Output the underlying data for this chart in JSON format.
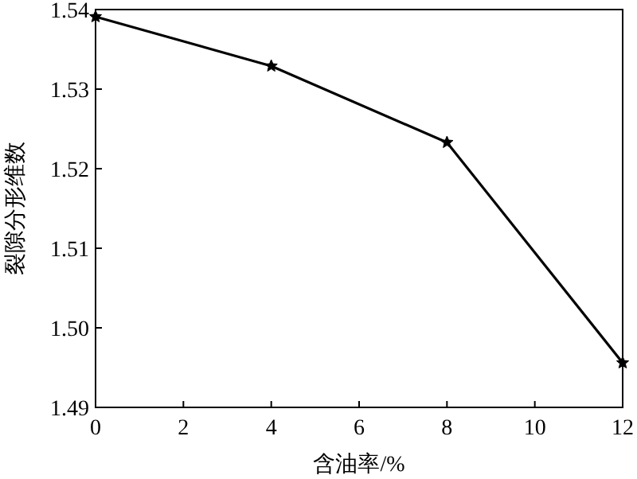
{
  "chart_data": {
    "type": "line",
    "xlabel": "含油率/%",
    "ylabel": "裂隙分形维数",
    "x": [
      0,
      4,
      8,
      12
    ],
    "series": [
      {
        "color": "#000000",
        "values": [
          1.5391,
          1.5329,
          1.5233,
          1.4956
        ]
      }
    ],
    "xlim": [
      0,
      12
    ],
    "xticks": [
      0,
      2,
      4,
      6,
      8,
      10,
      12
    ],
    "ylim": [
      1.49,
      1.54
    ],
    "yticks": [
      {
        "value": 1.49,
        "label": "1.49"
      },
      {
        "value": 1.5,
        "label": "1.50"
      },
      {
        "value": 1.51,
        "label": "1.51"
      },
      {
        "value": 1.52,
        "label": "1.52"
      },
      {
        "value": 1.53,
        "label": "1.53"
      },
      {
        "value": 1.54,
        "label": "1.54"
      }
    ],
    "marker": "star",
    "line_style": "solid",
    "grid": false
  }
}
